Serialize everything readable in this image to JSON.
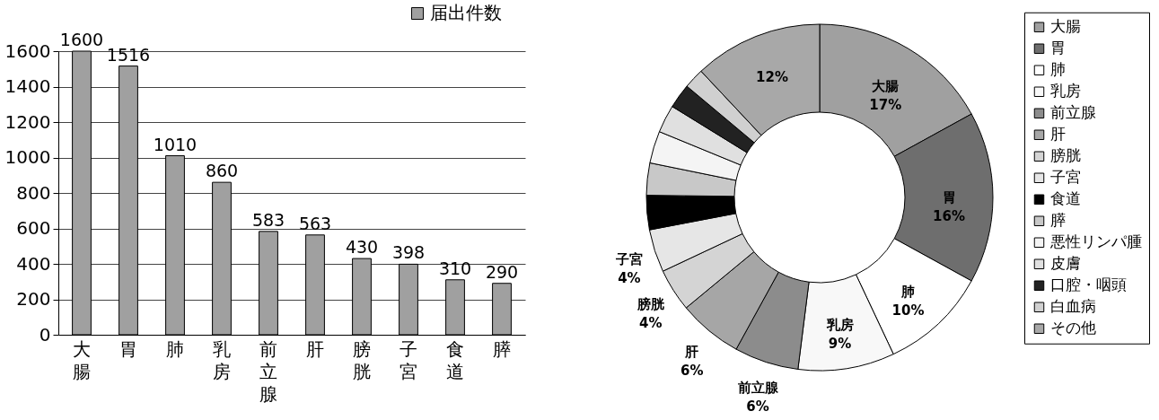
{
  "chart_data": [
    {
      "type": "bar",
      "categories": [
        "大腸",
        "胃",
        "肺",
        "乳房",
        "前立腺",
        "肝",
        "膀胱",
        "子宮",
        "食道",
        "膵"
      ],
      "series": [
        {
          "name": "届出件数",
          "color": "#a0a0a0",
          "values": [
            1600,
            1516,
            1010,
            860,
            583,
            563,
            430,
            398,
            310,
            290
          ]
        }
      ],
      "ylim": [
        0,
        1600
      ],
      "yticks": [
        0,
        200,
        400,
        600,
        800,
        1000,
        1200,
        1400,
        1600
      ],
      "grid": "y",
      "legend": "top right",
      "data_labels": true
    },
    {
      "type": "donut",
      "categories": [
        "大腸",
        "胃",
        "肺",
        "乳房",
        "前立腺",
        "肝",
        "膀胱",
        "子宮",
        "食道",
        "膵",
        "悪性リンパ腫",
        "皮膚",
        "口腔・咽頭",
        "白血病",
        "その他"
      ],
      "values": [
        17,
        16,
        10,
        9,
        6,
        6,
        4,
        4,
        3.2,
        3.0,
        3.0,
        2.6,
        2.3,
        1.9,
        12
      ],
      "colors": [
        "#a0a0a0",
        "#6e6e6e",
        "#ffffff",
        "#f8f8f8",
        "#8c8c8c",
        "#a6a6a6",
        "#d4d4d4",
        "#e6e6e6",
        "#000000",
        "#c8c8c8",
        "#f4f4f4",
        "#e0e0e0",
        "#222222",
        "#d0d0d0",
        "#a8a8a8"
      ],
      "value_labels": [
        "大腸\n17%",
        "胃\n16%",
        "肺\n10%",
        "乳房\n9%",
        "前立腺\n6%",
        "肝\n6%",
        "膀胱\n4%",
        "子宮\n4%",
        null,
        null,
        null,
        null,
        null,
        null,
        "12%"
      ],
      "legend": "right"
    }
  ]
}
